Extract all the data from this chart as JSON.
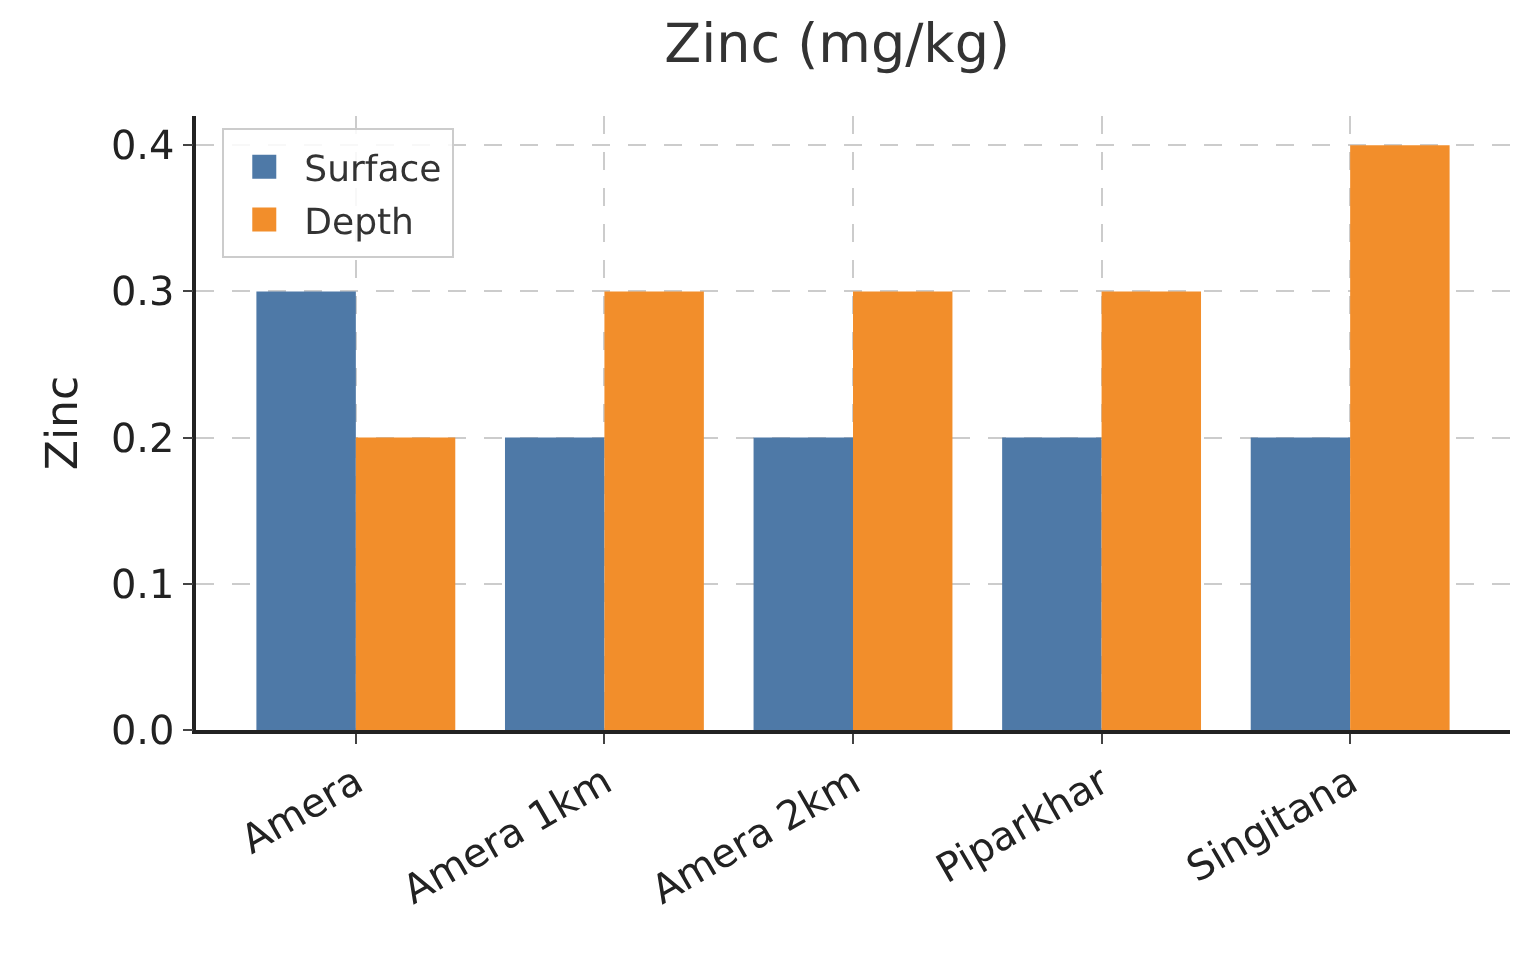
{
  "chart_data": {
    "type": "bar",
    "title": "Zinc (mg/kg)",
    "ylabel": "Zinc",
    "categories": [
      "Amera",
      "Amera 1km",
      "Amera 2km",
      "Piparkhar",
      "Singitana"
    ],
    "series": [
      {
        "name": "Surface",
        "color": "#4e79a7",
        "values": [
          0.3,
          0.2,
          0.2,
          0.2,
          0.2
        ]
      },
      {
        "name": "Depth",
        "color": "#f28e2b",
        "values": [
          0.2,
          0.3,
          0.3,
          0.3,
          0.4
        ]
      }
    ],
    "ylim": [
      0,
      0.42
    ],
    "yticks": [
      {
        "value": 0,
        "label": "0.0"
      },
      0.1,
      0.2,
      0.3,
      0.4
    ],
    "grid": true,
    "legend": "top left"
  }
}
